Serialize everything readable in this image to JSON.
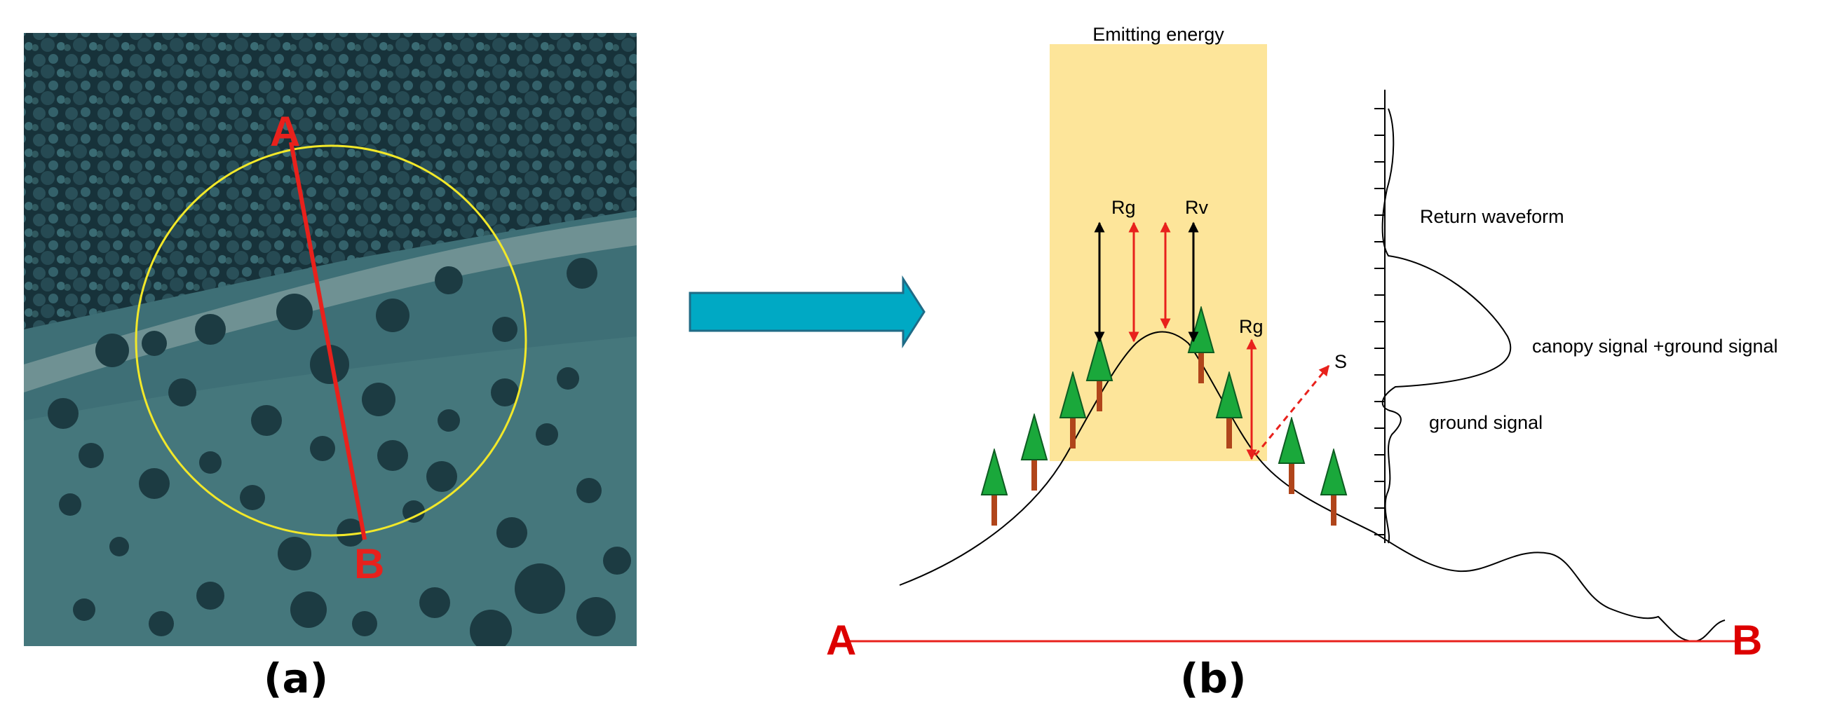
{
  "panel_a": {
    "label": "(a)",
    "point_a": "A",
    "point_b": "B"
  },
  "panel_b": {
    "label": "(b)",
    "beam_label": "Emitting energy",
    "rg_label_1": "Rg",
    "rv_label": "Rv",
    "rg_label_2": "Rg",
    "s_label": "S",
    "return_waveform_label": "Return waveform",
    "canopy_ground_label": "canopy signal +ground signal",
    "ground_signal_label": "ground signal",
    "point_a": "A",
    "point_b": "B"
  },
  "colors": {
    "transect": "#e8211c",
    "circle": "#f2e829",
    "arrow_fill": "#00a9c4",
    "arrow_stroke": "#1f6b86",
    "beam": "#fde59a",
    "tree_crown": "#1aa83b",
    "tree_trunk": "#b0451b",
    "label_red": "#dd0000"
  }
}
